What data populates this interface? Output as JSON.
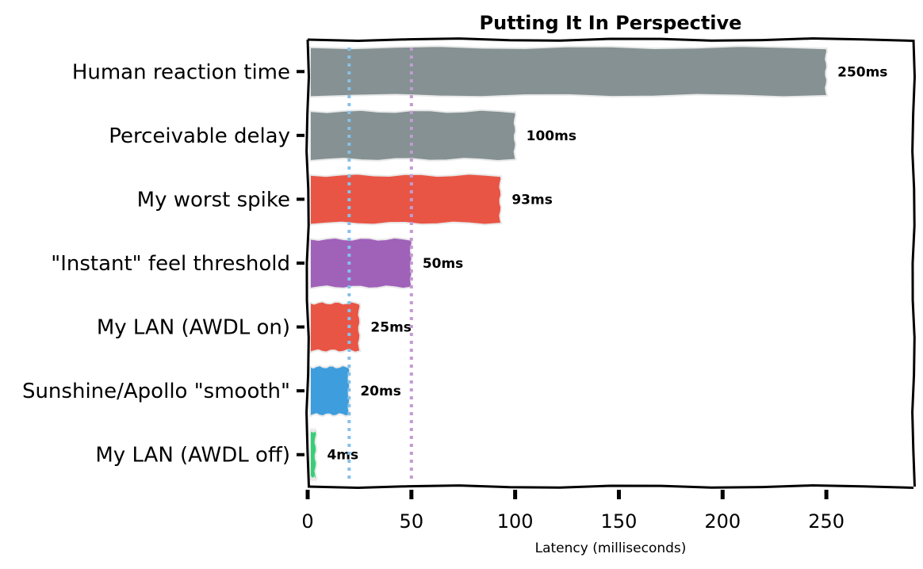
{
  "chart_data": {
    "type": "bar",
    "orientation": "horizontal",
    "style": "xkcd hand-drawn",
    "title": "Putting It In Perspective",
    "xlabel": "Latency (milliseconds)",
    "ylabel": "",
    "xlim": [
      0,
      292
    ],
    "xticks": [
      0,
      50,
      100,
      150,
      200,
      250
    ],
    "categories": [
      "Human reaction time",
      "Perceivable delay",
      "My worst spike",
      "\"Instant\" feel threshold",
      "My LAN (AWDL on)",
      "Sunshine/Apollo \"smooth\"",
      "My LAN (AWDL off)"
    ],
    "values": [
      250,
      100,
      93,
      50,
      25,
      20,
      4
    ],
    "value_labels": [
      "250ms",
      "100ms",
      "93ms",
      "50ms",
      "25ms",
      "20ms",
      "4ms"
    ],
    "colors": [
      "#7f8c8d",
      "#7f8c8d",
      "#e74c3c",
      "#9b59b6",
      "#e74c3c",
      "#3498db",
      "#2ecc71"
    ],
    "reference_lines": [
      {
        "x": 20,
        "color": "#85c1e9",
        "style": "dotted"
      },
      {
        "x": 50,
        "color": "#c39bd3",
        "style": "dotted"
      }
    ],
    "grid": false,
    "legend": "none"
  }
}
